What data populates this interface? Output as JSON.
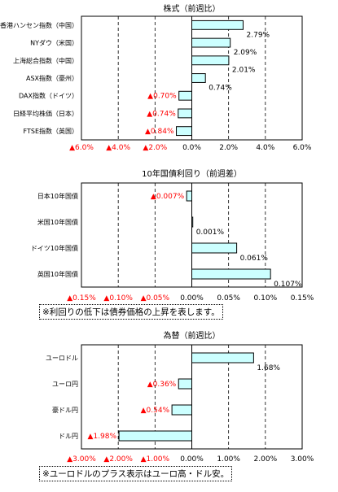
{
  "colors": {
    "bar_fill": "#ccffff",
    "bar_stroke": "#000000",
    "negative_text": "#ff0000",
    "positive_text": "#000000"
  },
  "chart_data": [
    {
      "type": "bar",
      "orientation": "horizontal",
      "title": "株式（前週比）",
      "categories": [
        "香港ハンセン指数（中国）",
        "NYダウ（米国）",
        "上海総合指数（中国）",
        "ASX指数（豪州）",
        "DAX指数（ドイツ）",
        "日経平均株価（日本）",
        "FTSE指数（英国）"
      ],
      "values": [
        2.79,
        2.09,
        2.01,
        0.74,
        -0.7,
        -0.74,
        -0.84
      ],
      "value_labels": [
        "2.79%",
        "2.09%",
        "2.01%",
        "0.74%",
        "▲0.70%",
        "▲0.74%",
        "▲0.84%"
      ],
      "xlim": [
        -6.0,
        6.0
      ],
      "ticks": [
        -6,
        -4,
        -2,
        0,
        2,
        4,
        6
      ],
      "tick_labels": [
        "▲6.0%",
        "▲4.0%",
        "▲2.0%",
        "0.0%",
        "2.0%",
        "4.0%",
        "6.0%"
      ],
      "grid": "vertical dashed",
      "note": ""
    },
    {
      "type": "bar",
      "orientation": "horizontal",
      "title": "10年国債利回り（前週差）",
      "categories": [
        "日本10年国債",
        "米国10年国債",
        "ドイツ10年国債",
        "英国10年国債"
      ],
      "values": [
        -0.007,
        0.001,
        0.061,
        0.107
      ],
      "value_labels": [
        "▲0.007%",
        "0.001%",
        "0.061%",
        "0.107%"
      ],
      "xlim": [
        -0.15,
        0.15
      ],
      "ticks": [
        -0.15,
        -0.1,
        -0.05,
        0,
        0.05,
        0.1,
        0.15
      ],
      "tick_labels": [
        "▲0.15%",
        "▲0.10%",
        "▲0.05%",
        "0.00%",
        "0.05%",
        "0.10%",
        "0.15%"
      ],
      "grid": "vertical dashed",
      "note": "※利回りの低下は債券価格の上昇を表します。"
    },
    {
      "type": "bar",
      "orientation": "horizontal",
      "title": "為替（前週比）",
      "categories": [
        "ユーロドル",
        "ユーロ円",
        "豪ドル円",
        "ドル円"
      ],
      "values": [
        1.68,
        -0.36,
        -0.54,
        -1.98
      ],
      "value_labels": [
        "1.68%",
        "▲0.36%",
        "▲0.54%",
        "▲1.98%"
      ],
      "xlim": [
        -3.0,
        3.0
      ],
      "ticks": [
        -3,
        -2,
        -1,
        0,
        1,
        2,
        3
      ],
      "tick_labels": [
        "▲3.00%",
        "▲2.00%",
        "▲1.00%",
        "0.00%",
        "1.00%",
        "2.00%",
        "3.00%"
      ],
      "grid": "vertical dashed",
      "note": "※ユーロドルのプラス表示はユーロ高・ドル安。"
    }
  ]
}
